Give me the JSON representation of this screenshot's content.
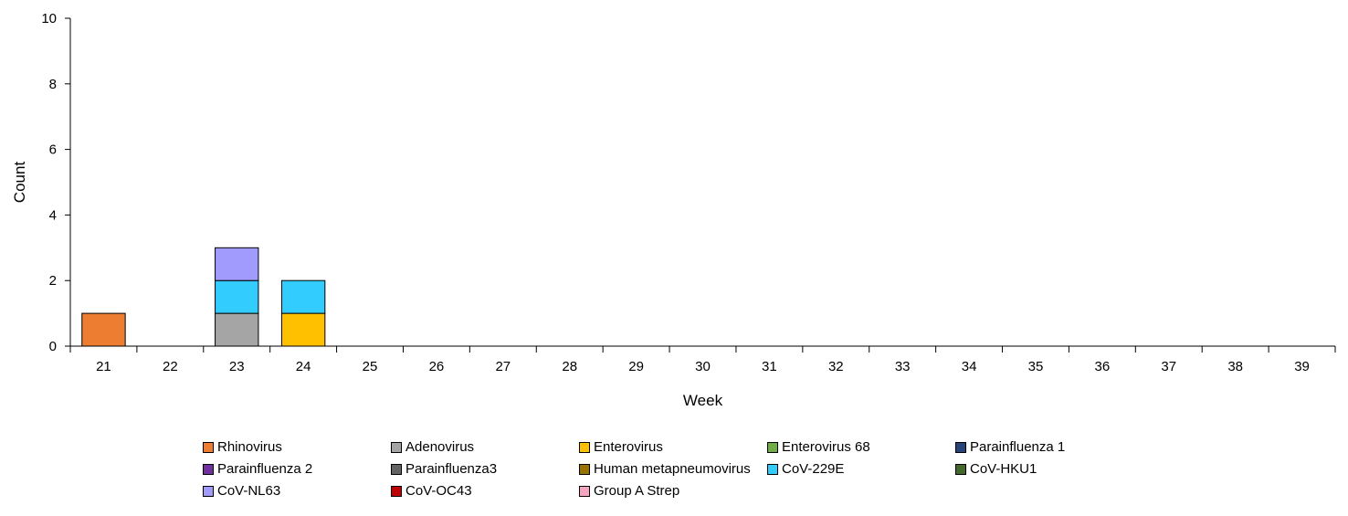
{
  "chart_data": {
    "type": "bar",
    "stacked": true,
    "xlabel": "Week",
    "ylabel": "Count",
    "ylim": [
      0,
      10
    ],
    "yticks": [
      0,
      2,
      4,
      6,
      8,
      10
    ],
    "categories": [
      "21",
      "22",
      "23",
      "24",
      "25",
      "26",
      "27",
      "28",
      "29",
      "30",
      "31",
      "32",
      "33",
      "34",
      "35",
      "36",
      "37",
      "38",
      "39"
    ],
    "grid": false,
    "legend_position": "bottom",
    "series": [
      {
        "name": "Rhinovirus",
        "color": "#ED7D31",
        "values": [
          1,
          0,
          0,
          0,
          0,
          0,
          0,
          0,
          0,
          0,
          0,
          0,
          0,
          0,
          0,
          0,
          0,
          0,
          0
        ]
      },
      {
        "name": "Adenovirus",
        "color": "#A5A5A5",
        "values": [
          0,
          0,
          1,
          0,
          0,
          0,
          0,
          0,
          0,
          0,
          0,
          0,
          0,
          0,
          0,
          0,
          0,
          0,
          0
        ]
      },
      {
        "name": "Enterovirus",
        "color": "#FFC000",
        "values": [
          0,
          0,
          0,
          1,
          0,
          0,
          0,
          0,
          0,
          0,
          0,
          0,
          0,
          0,
          0,
          0,
          0,
          0,
          0
        ]
      },
      {
        "name": "Enterovirus 68",
        "color": "#70AD47",
        "values": [
          0,
          0,
          0,
          0,
          0,
          0,
          0,
          0,
          0,
          0,
          0,
          0,
          0,
          0,
          0,
          0,
          0,
          0,
          0
        ]
      },
      {
        "name": "Parainfluenza 1",
        "color": "#264478",
        "values": [
          0,
          0,
          0,
          0,
          0,
          0,
          0,
          0,
          0,
          0,
          0,
          0,
          0,
          0,
          0,
          0,
          0,
          0,
          0
        ]
      },
      {
        "name": "Parainfluenza 2",
        "color": "#7030A0",
        "values": [
          0,
          0,
          0,
          0,
          0,
          0,
          0,
          0,
          0,
          0,
          0,
          0,
          0,
          0,
          0,
          0,
          0,
          0,
          0
        ]
      },
      {
        "name": "Parainfluenza3",
        "color": "#636363",
        "values": [
          0,
          0,
          0,
          0,
          0,
          0,
          0,
          0,
          0,
          0,
          0,
          0,
          0,
          0,
          0,
          0,
          0,
          0,
          0
        ]
      },
      {
        "name": "Human metapneumovirus",
        "color": "#997300",
        "values": [
          0,
          0,
          0,
          0,
          0,
          0,
          0,
          0,
          0,
          0,
          0,
          0,
          0,
          0,
          0,
          0,
          0,
          0,
          0
        ]
      },
      {
        "name": "CoV-229E",
        "color": "#33CCFF",
        "values": [
          0,
          0,
          1,
          1,
          0,
          0,
          0,
          0,
          0,
          0,
          0,
          0,
          0,
          0,
          0,
          0,
          0,
          0,
          0
        ]
      },
      {
        "name": "CoV-HKU1",
        "color": "#43682B",
        "values": [
          0,
          0,
          0,
          0,
          0,
          0,
          0,
          0,
          0,
          0,
          0,
          0,
          0,
          0,
          0,
          0,
          0,
          0,
          0
        ]
      },
      {
        "name": "CoV-NL63",
        "color": "#A29BFE",
        "values": [
          0,
          0,
          1,
          0,
          0,
          0,
          0,
          0,
          0,
          0,
          0,
          0,
          0,
          0,
          0,
          0,
          0,
          0,
          0
        ]
      },
      {
        "name": "CoV-OC43",
        "color": "#C00000",
        "values": [
          0,
          0,
          0,
          0,
          0,
          0,
          0,
          0,
          0,
          0,
          0,
          0,
          0,
          0,
          0,
          0,
          0,
          0,
          0
        ]
      },
      {
        "name": "Group A Strep",
        "color": "#F8A5C2",
        "values": [
          0,
          0,
          0,
          0,
          0,
          0,
          0,
          0,
          0,
          0,
          0,
          0,
          0,
          0,
          0,
          0,
          0,
          0,
          0
        ]
      }
    ]
  }
}
